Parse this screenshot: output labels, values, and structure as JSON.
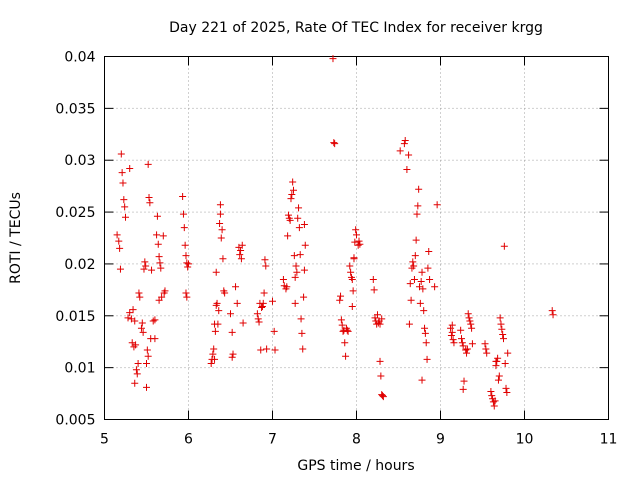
{
  "chart_data": {
    "type": "scatter",
    "title": "Day 221 of 2025, Rate Of TEC Index for receiver krgg",
    "xlabel": "GPS time / hours",
    "ylabel": "ROTI / TECUs",
    "xlim": [
      5,
      11
    ],
    "ylim": [
      0.005,
      0.04
    ],
    "xticks": [
      "5",
      "6",
      "7",
      "8",
      "9",
      "10",
      "11"
    ],
    "yticks": [
      "0.005",
      "0.01",
      "0.015",
      "0.02",
      "0.025",
      "0.03",
      "0.035",
      "0.04"
    ],
    "grid": true,
    "marker": "plus",
    "color": "#e00000",
    "series": [
      {
        "name": "ROTI",
        "points": [
          [
            5.15,
            0.0228
          ],
          [
            5.17,
            0.0222
          ],
          [
            5.18,
            0.0215
          ],
          [
            5.19,
            0.0195
          ],
          [
            5.2,
            0.0306
          ],
          [
            5.21,
            0.0288
          ],
          [
            5.22,
            0.0278
          ],
          [
            5.23,
            0.0262
          ],
          [
            5.24,
            0.0255
          ],
          [
            5.25,
            0.0245
          ],
          [
            5.3,
            0.0292
          ],
          [
            5.28,
            0.0148
          ],
          [
            5.3,
            0.0153
          ],
          [
            5.32,
            0.0147
          ],
          [
            5.34,
            0.0156
          ],
          [
            5.36,
            0.0145
          ],
          [
            5.33,
            0.0124
          ],
          [
            5.35,
            0.012
          ],
          [
            5.37,
            0.0122
          ],
          [
            5.38,
            0.0098
          ],
          [
            5.39,
            0.0094
          ],
          [
            5.4,
            0.0104
          ],
          [
            5.36,
            0.0085
          ],
          [
            5.41,
            0.0172
          ],
          [
            5.42,
            0.0168
          ],
          [
            5.44,
            0.0138
          ],
          [
            5.45,
            0.0143
          ],
          [
            5.46,
            0.0134
          ],
          [
            5.47,
            0.0195
          ],
          [
            5.48,
            0.0202
          ],
          [
            5.49,
            0.0198
          ],
          [
            5.5,
            0.0104
          ],
          [
            5.5,
            0.0081
          ],
          [
            5.51,
            0.0117
          ],
          [
            5.52,
            0.0111
          ],
          [
            5.53,
            0.0264
          ],
          [
            5.54,
            0.0259
          ],
          [
            5.52,
            0.0296
          ],
          [
            5.55,
            0.0128
          ],
          [
            5.56,
            0.0194
          ],
          [
            5.58,
            0.0145
          ],
          [
            5.6,
            0.0146
          ],
          [
            5.62,
            0.0228
          ],
          [
            5.63,
            0.0246
          ],
          [
            5.64,
            0.0219
          ],
          [
            5.65,
            0.0207
          ],
          [
            5.66,
            0.0201
          ],
          [
            5.67,
            0.0196
          ],
          [
            5.65,
            0.0165
          ],
          [
            5.68,
            0.0168
          ],
          [
            5.7,
            0.0227
          ],
          [
            5.71,
            0.0172
          ],
          [
            5.72,
            0.0174
          ],
          [
            5.6,
            0.0128
          ],
          [
            5.93,
            0.0265
          ],
          [
            5.94,
            0.0248
          ],
          [
            5.95,
            0.0235
          ],
          [
            5.96,
            0.0218
          ],
          [
            5.97,
            0.0208
          ],
          [
            5.98,
            0.0201
          ],
          [
            5.99,
            0.0197
          ],
          [
            5.97,
            0.0172
          ],
          [
            5.98,
            0.0168
          ],
          [
            6.0,
            0.02
          ],
          [
            6.27,
            0.0104
          ],
          [
            6.28,
            0.0108
          ],
          [
            6.29,
            0.0113
          ],
          [
            6.3,
            0.0118
          ],
          [
            6.31,
            0.0142
          ],
          [
            6.32,
            0.0135
          ],
          [
            6.31,
            0.0108
          ],
          [
            6.33,
            0.0192
          ],
          [
            6.33,
            0.016
          ],
          [
            6.34,
            0.0162
          ],
          [
            6.35,
            0.0142
          ],
          [
            6.36,
            0.0155
          ],
          [
            6.37,
            0.0239
          ],
          [
            6.38,
            0.0257
          ],
          [
            6.38,
            0.0248
          ],
          [
            6.39,
            0.0225
          ],
          [
            6.4,
            0.0233
          ],
          [
            6.41,
            0.0205
          ],
          [
            6.42,
            0.0174
          ],
          [
            6.43,
            0.0172
          ],
          [
            6.5,
            0.0152
          ],
          [
            6.52,
            0.0134
          ],
          [
            6.52,
            0.011
          ],
          [
            6.53,
            0.0113
          ],
          [
            6.56,
            0.0178
          ],
          [
            6.58,
            0.0162
          ],
          [
            6.6,
            0.0216
          ],
          [
            6.61,
            0.0209
          ],
          [
            6.62,
            0.0213
          ],
          [
            6.63,
            0.0205
          ],
          [
            6.64,
            0.0218
          ],
          [
            6.65,
            0.0143
          ],
          [
            6.82,
            0.0152
          ],
          [
            6.83,
            0.0147
          ],
          [
            6.84,
            0.0144
          ],
          [
            6.85,
            0.0162
          ],
          [
            6.86,
            0.0117
          ],
          [
            6.87,
            0.0158
          ],
          [
            6.88,
            0.0159
          ],
          [
            6.89,
            0.0162
          ],
          [
            6.9,
            0.0172
          ],
          [
            6.91,
            0.0204
          ],
          [
            6.92,
            0.0198
          ],
          [
            6.93,
            0.0118
          ],
          [
            7.0,
            0.0164
          ],
          [
            7.02,
            0.0135
          ],
          [
            7.03,
            0.0117
          ],
          [
            7.13,
            0.0185
          ],
          [
            7.14,
            0.0179
          ],
          [
            7.16,
            0.0176
          ],
          [
            7.17,
            0.0178
          ],
          [
            7.18,
            0.0227
          ],
          [
            7.19,
            0.0247
          ],
          [
            7.2,
            0.0244
          ],
          [
            7.21,
            0.0242
          ],
          [
            7.22,
            0.0263
          ],
          [
            7.23,
            0.0267
          ],
          [
            7.24,
            0.0279
          ],
          [
            7.25,
            0.0271
          ],
          [
            7.26,
            0.0208
          ],
          [
            7.27,
            0.0187
          ],
          [
            7.27,
            0.0162
          ],
          [
            7.28,
            0.0198
          ],
          [
            7.29,
            0.0192
          ],
          [
            7.3,
            0.0244
          ],
          [
            7.31,
            0.0254
          ],
          [
            7.32,
            0.0235
          ],
          [
            7.33,
            0.0209
          ],
          [
            7.34,
            0.0147
          ],
          [
            7.35,
            0.0133
          ],
          [
            7.36,
            0.0118
          ],
          [
            7.37,
            0.0168
          ],
          [
            7.38,
            0.0194
          ],
          [
            7.39,
            0.0218
          ],
          [
            7.38,
            0.0238
          ],
          [
            7.72,
            0.0398
          ],
          [
            7.73,
            0.0317
          ],
          [
            7.74,
            0.0316
          ],
          [
            7.8,
            0.0165
          ],
          [
            7.81,
            0.0169
          ],
          [
            7.82,
            0.0146
          ],
          [
            7.83,
            0.0141
          ],
          [
            7.84,
            0.0135
          ],
          [
            7.85,
            0.0136
          ],
          [
            7.86,
            0.0124
          ],
          [
            7.87,
            0.0111
          ],
          [
            7.88,
            0.0138
          ],
          [
            7.89,
            0.0136
          ],
          [
            7.9,
            0.0135
          ],
          [
            7.92,
            0.0198
          ],
          [
            7.93,
            0.0192
          ],
          [
            7.94,
            0.0187
          ],
          [
            7.95,
            0.0185
          ],
          [
            7.96,
            0.0174
          ],
          [
            7.97,
            0.0206
          ],
          [
            7.98,
            0.0221
          ],
          [
            7.99,
            0.0233
          ],
          [
            8.0,
            0.0228
          ],
          [
            8.02,
            0.0218
          ],
          [
            8.03,
            0.0222
          ],
          [
            8.04,
            0.0219
          ],
          [
            7.95,
            0.0159
          ],
          [
            7.97,
            0.0205
          ],
          [
            8.2,
            0.0185
          ],
          [
            8.21,
            0.0175
          ],
          [
            8.22,
            0.0148
          ],
          [
            8.23,
            0.0145
          ],
          [
            8.24,
            0.0142
          ],
          [
            8.25,
            0.0151
          ],
          [
            8.26,
            0.0143
          ],
          [
            8.27,
            0.0145
          ],
          [
            8.28,
            0.0106
          ],
          [
            8.29,
            0.0092
          ],
          [
            8.3,
            0.0074
          ],
          [
            8.31,
            0.0073
          ],
          [
            8.32,
            0.0072
          ],
          [
            8.28,
            0.0142
          ],
          [
            8.3,
            0.0147
          ],
          [
            8.57,
            0.0316
          ],
          [
            8.58,
            0.0319
          ],
          [
            8.52,
            0.0309
          ],
          [
            8.6,
            0.0291
          ],
          [
            8.62,
            0.0305
          ],
          [
            8.64,
            0.0181
          ],
          [
            8.65,
            0.0165
          ],
          [
            8.66,
            0.0196
          ],
          [
            8.67,
            0.0202
          ],
          [
            8.68,
            0.0198
          ],
          [
            8.69,
            0.0185
          ],
          [
            8.7,
            0.0208
          ],
          [
            8.71,
            0.0223
          ],
          [
            8.72,
            0.0248
          ],
          [
            8.73,
            0.0256
          ],
          [
            8.74,
            0.0272
          ],
          [
            8.75,
            0.0178
          ],
          [
            8.76,
            0.0162
          ],
          [
            8.77,
            0.0183
          ],
          [
            8.78,
            0.0192
          ],
          [
            8.79,
            0.0176
          ],
          [
            8.8,
            0.0155
          ],
          [
            8.81,
            0.0138
          ],
          [
            8.82,
            0.0133
          ],
          [
            8.83,
            0.0124
          ],
          [
            8.84,
            0.0108
          ],
          [
            8.78,
            0.0088
          ],
          [
            8.85,
            0.0196
          ],
          [
            8.86,
            0.0212
          ],
          [
            8.87,
            0.0185
          ],
          [
            8.63,
            0.0142
          ],
          [
            8.96,
            0.0257
          ],
          [
            8.93,
            0.0178
          ],
          [
            9.12,
            0.0138
          ],
          [
            9.13,
            0.0131
          ],
          [
            9.14,
            0.0134
          ],
          [
            9.15,
            0.0127
          ],
          [
            9.16,
            0.0124
          ],
          [
            9.14,
            0.0141
          ],
          [
            9.24,
            0.0136
          ],
          [
            9.25,
            0.0128
          ],
          [
            9.26,
            0.0124
          ],
          [
            9.27,
            0.0121
          ],
          [
            9.28,
            0.0087
          ],
          [
            9.27,
            0.0079
          ],
          [
            9.3,
            0.0117
          ],
          [
            9.31,
            0.0114
          ],
          [
            9.32,
            0.0118
          ],
          [
            9.33,
            0.0152
          ],
          [
            9.34,
            0.0148
          ],
          [
            9.35,
            0.0145
          ],
          [
            9.36,
            0.0142
          ],
          [
            9.37,
            0.0138
          ],
          [
            9.38,
            0.0123
          ],
          [
            9.53,
            0.0123
          ],
          [
            9.54,
            0.0118
          ],
          [
            9.55,
            0.0114
          ],
          [
            9.6,
            0.0077
          ],
          [
            9.61,
            0.0073
          ],
          [
            9.62,
            0.007
          ],
          [
            9.63,
            0.0067
          ],
          [
            9.64,
            0.0063
          ],
          [
            9.65,
            0.0068
          ],
          [
            9.66,
            0.0102
          ],
          [
            9.67,
            0.0106
          ],
          [
            9.68,
            0.0109
          ],
          [
            9.69,
            0.0088
          ],
          [
            9.7,
            0.0092
          ],
          [
            9.71,
            0.0148
          ],
          [
            9.72,
            0.0142
          ],
          [
            9.73,
            0.0137
          ],
          [
            9.74,
            0.0132
          ],
          [
            9.75,
            0.0128
          ],
          [
            9.76,
            0.0217
          ],
          [
            9.77,
            0.0104
          ],
          [
            9.78,
            0.008
          ],
          [
            9.79,
            0.0076
          ],
          [
            9.8,
            0.0114
          ],
          [
            9.66,
            0.0106
          ],
          [
            10.33,
            0.0155
          ],
          [
            10.34,
            0.0151
          ]
        ]
      }
    ]
  }
}
